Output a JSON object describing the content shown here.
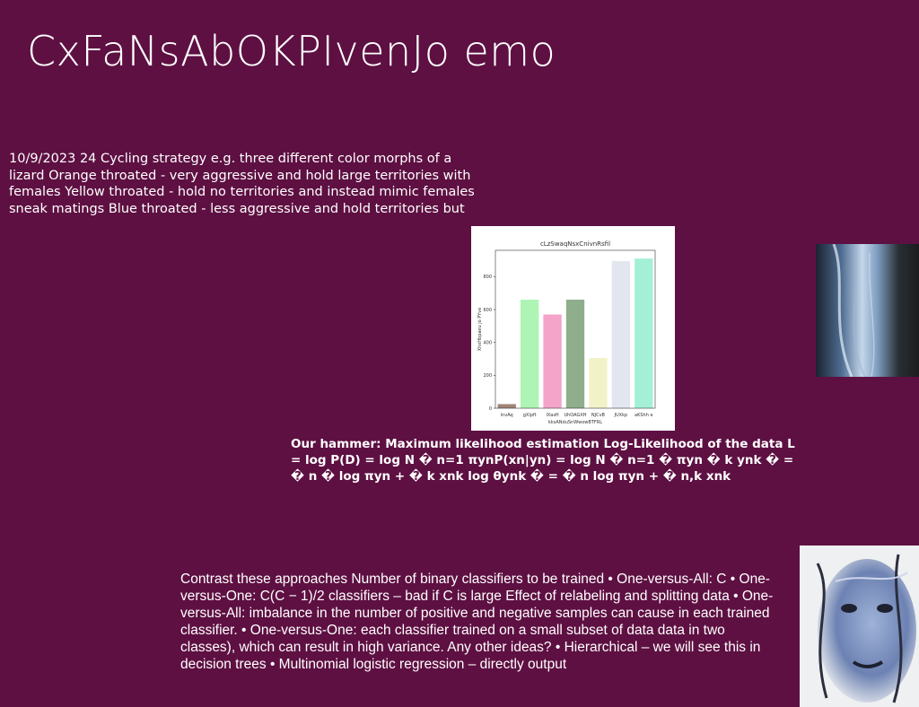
{
  "slide": {
    "title": "CxFaNsAbOKPIvenJo emo",
    "paragraph1": "10/9/2023 24 Cycling strategy e.g. three different color morphs of a lizard Orange throated - very aggressive and hold large territories with females Yellow throated - hold no territories and instead mimic females sneak matings Blue throated - less aggressive and hold territories but",
    "hammer": "Our hammer: Maximum likelihood estimation Log-Likelihood of the data L = log P(D) = log N � n=1 πynP(xn|yn) = log N � n=1 � πyn � k ynk � = � n � log πyn + � k xnk log θynk � = � n log πyn + � n,k xnk",
    "paragraph2": "Contrast these approaches Number of binary classifiers to be trained • One-versus-All: C • One-versus-One: C(C − 1)/2 classifiers – bad if C is large Effect of relabeling and splitting data • One-versus-All: imbalance in the number of positive and negative samples can cause in each trained classifier. • One-versus-One: each classifier trained on a small subset of data data in two classes), which can result in high variance. Any other ideas? • Hierarchical – we will see this in decision trees • Multinomial logistic regression – directly output",
    "photo1_icon": "abstract-blue-photo",
    "photo2_icon": "face-portrait-photo"
  },
  "chart_data": {
    "type": "bar",
    "title": "cLzSwaqNsxCnivnRsfil",
    "xlabel": "kksANduSnWwowBTFRL",
    "ylabel": "XhxHbpaeu jo PYve",
    "categories": [
      "lnvAq",
      "gXlpft",
      "lXasH",
      "UhOAGXH",
      "NJCvB",
      "JUXkp",
      "aKShh e"
    ],
    "values": [
      25,
      660,
      570,
      660,
      305,
      895,
      910
    ],
    "colors": [
      "#a08575",
      "#aef5b5",
      "#f4a4c8",
      "#8fae8b",
      "#f1f2c8",
      "#e3e6ee",
      "#a3f0d7"
    ],
    "yticks": [
      0,
      200,
      400,
      600,
      800
    ],
    "ylim": [
      0,
      960
    ],
    "grid": false
  }
}
